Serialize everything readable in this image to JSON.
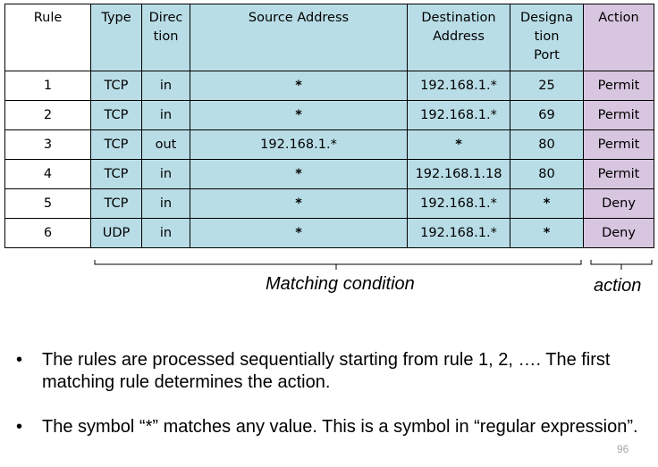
{
  "table": {
    "headers": {
      "rule": "Rule",
      "type": "Type",
      "direction_1": "Direc",
      "direction_2": "tion",
      "source": "Source Address",
      "destination_1": "Destination",
      "destination_2": "Address",
      "port_1": "Designa",
      "port_2": "tion",
      "port_3": "Port",
      "action": "Action"
    },
    "rows": [
      {
        "rule": "1",
        "type": "TCP",
        "direction": "in",
        "source": "*",
        "destination": "192.168.1.*",
        "port": "25",
        "action": "Permit"
      },
      {
        "rule": "2",
        "type": "TCP",
        "direction": "in",
        "source": "*",
        "destination": "192.168.1.*",
        "port": "69",
        "action": "Permit"
      },
      {
        "rule": "3",
        "type": "TCP",
        "direction": "out",
        "source": "192.168.1.*",
        "destination": "*",
        "port": "80",
        "action": "Permit"
      },
      {
        "rule": "4",
        "type": "TCP",
        "direction": "in",
        "source": "*",
        "destination": "192.168.1.18",
        "port": "80",
        "action": "Permit"
      },
      {
        "rule": "5",
        "type": "TCP",
        "direction": "in",
        "source": "*",
        "destination": "192.168.1.*",
        "port": "*",
        "action": "Deny"
      },
      {
        "rule": "6",
        "type": "UDP",
        "direction": "in",
        "source": "*",
        "destination": "192.168.1.*",
        "port": "*",
        "action": "Deny"
      }
    ],
    "colors": {
      "condition": "#b9dde6",
      "action": "#d8c6e0"
    }
  },
  "labels": {
    "matching_condition": "Matching condition",
    "action": "action"
  },
  "bullets": {
    "symbol": "•",
    "first": "The rules are processed sequentially starting from rule 1, 2, …. The first matching rule determines the action.",
    "second": "The symbol “*”  matches any value. This is a symbol in “regular expression”."
  },
  "page_number": "96"
}
